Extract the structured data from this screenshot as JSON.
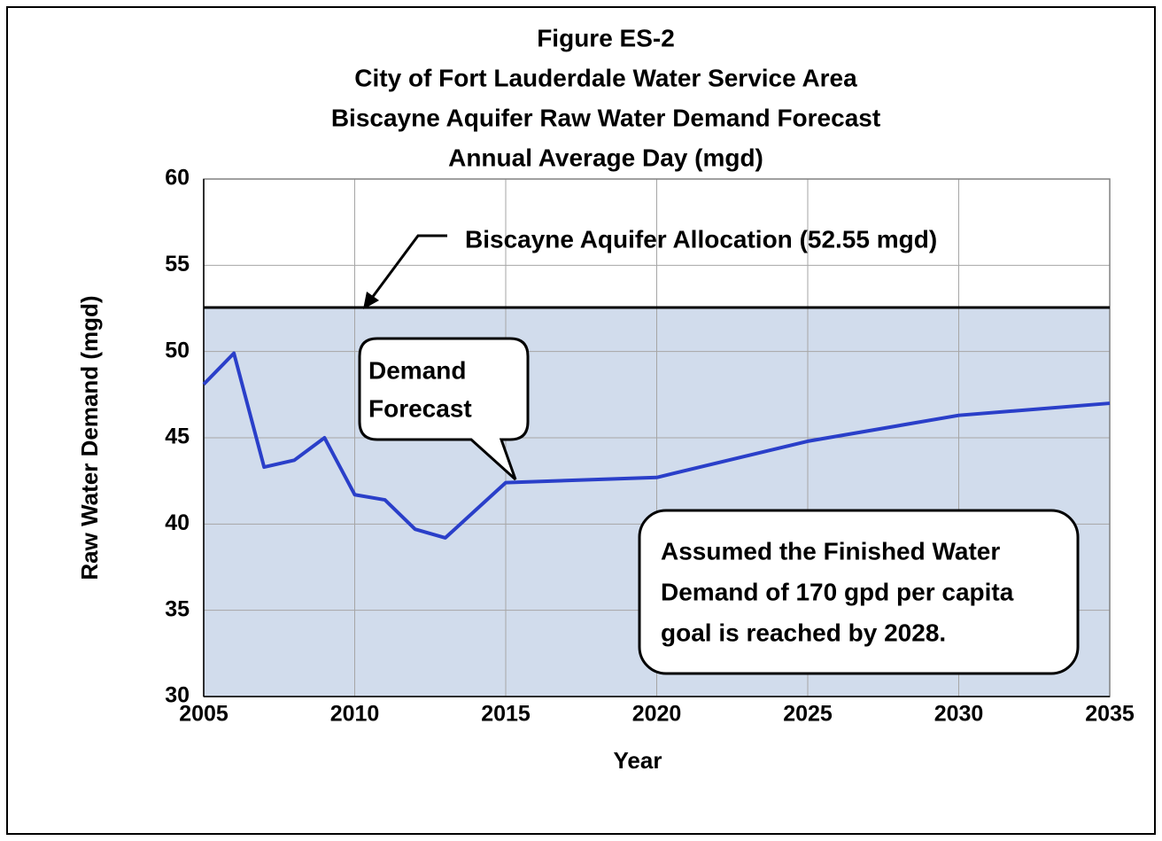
{
  "chart_data": {
    "type": "line",
    "title": [
      "Figure ES-2",
      "City of Fort Lauderdale Water Service Area",
      "Biscayne Aquifer Raw Water Demand Forecast",
      "Annual Average Day (mgd)"
    ],
    "x_label": "Year",
    "y_label": "Raw Water Demand (mgd)",
    "series": [
      {
        "name": "Demand Forecast",
        "color": "#2a3fc9",
        "x": [
          2005,
          2006,
          2007,
          2008,
          2009,
          2010,
          2011,
          2012,
          2013,
          2014,
          2015,
          2020,
          2025,
          2030,
          2035
        ],
        "values": [
          48.1,
          49.9,
          43.3,
          43.7,
          45.0,
          41.7,
          41.4,
          39.7,
          39.2,
          40.8,
          42.4,
          42.7,
          44.8,
          46.3,
          47.0
        ]
      }
    ],
    "allocation": 52.55,
    "allocation_label": "Biscayne Aquifer Allocation (52.55 mgd)",
    "allocation_fill": "#d1dcec",
    "callout": [
      "Demand",
      "Forecast"
    ],
    "note": [
      "Assumed the Finished Water",
      "Demand of 170 gpd per capita",
      "goal is reached by 2028."
    ],
    "xlim": [
      2005,
      2035
    ],
    "xticks": [
      2005,
      2010,
      2015,
      2020,
      2025,
      2030,
      2035
    ],
    "ylim": [
      30,
      60
    ],
    "yticks": [
      30,
      35,
      40,
      45,
      50,
      55,
      60
    ],
    "grid": true
  }
}
